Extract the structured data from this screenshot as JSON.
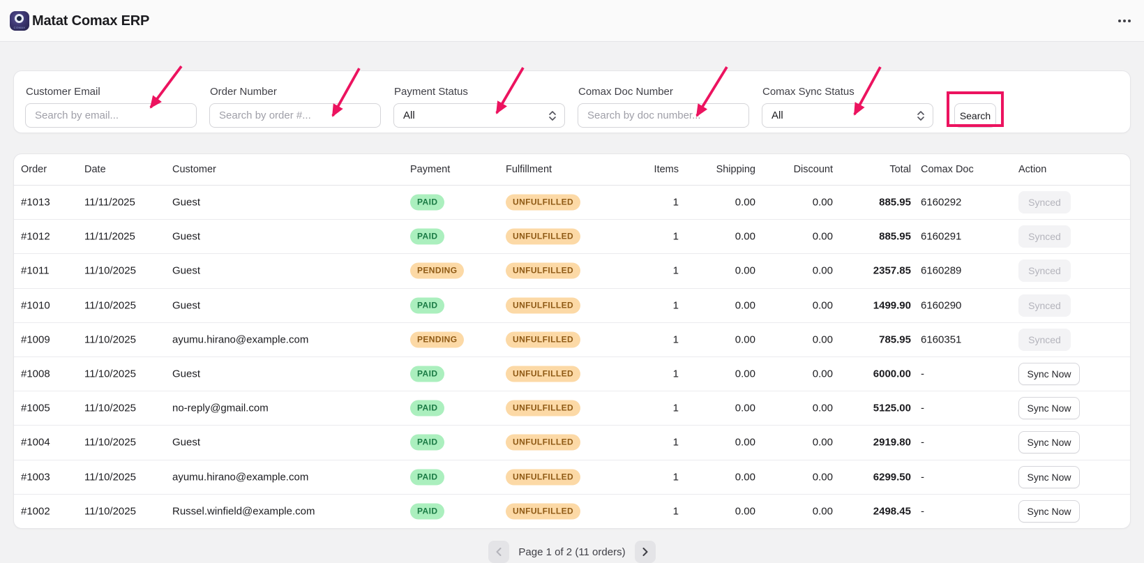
{
  "header": {
    "title": "Matat Comax ERP",
    "logo_text": "COMAX"
  },
  "filters": {
    "fields": [
      {
        "label": "Customer Email",
        "placeholder": "Search by email..."
      },
      {
        "label": "Order Number",
        "placeholder": "Search by order #..."
      },
      {
        "label": "Payment Status",
        "value": "All"
      },
      {
        "label": "Comax Doc Number",
        "placeholder": "Search by doc number..."
      },
      {
        "label": "Comax Sync Status",
        "value": "All"
      }
    ],
    "search_label": "Search"
  },
  "table": {
    "columns": [
      "Order",
      "Date",
      "Customer",
      "Payment",
      "Fulfillment",
      "Items",
      "Shipping",
      "Discount",
      "Total",
      "Comax Doc",
      "Action"
    ],
    "rows": [
      {
        "order": "#1013",
        "date": "11/11/2025",
        "customer": "Guest",
        "payment": "PAID",
        "fulfillment": "UNFULFILLED",
        "items": "1",
        "shipping": "0.00",
        "discount": "0.00",
        "total": "885.95",
        "comaxdoc": "6160292",
        "action": "Synced"
      },
      {
        "order": "#1012",
        "date": "11/11/2025",
        "customer": "Guest",
        "payment": "PAID",
        "fulfillment": "UNFULFILLED",
        "items": "1",
        "shipping": "0.00",
        "discount": "0.00",
        "total": "885.95",
        "comaxdoc": "6160291",
        "action": "Synced"
      },
      {
        "order": "#1011",
        "date": "11/10/2025",
        "customer": "Guest",
        "payment": "PENDING",
        "fulfillment": "UNFULFILLED",
        "items": "1",
        "shipping": "0.00",
        "discount": "0.00",
        "total": "2357.85",
        "comaxdoc": "6160289",
        "action": "Synced"
      },
      {
        "order": "#1010",
        "date": "11/10/2025",
        "customer": "Guest",
        "payment": "PAID",
        "fulfillment": "UNFULFILLED",
        "items": "1",
        "shipping": "0.00",
        "discount": "0.00",
        "total": "1499.90",
        "comaxdoc": "6160290",
        "action": "Synced"
      },
      {
        "order": "#1009",
        "date": "11/10/2025",
        "customer": "ayumu.hirano@example.com",
        "payment": "PENDING",
        "fulfillment": "UNFULFILLED",
        "items": "1",
        "shipping": "0.00",
        "discount": "0.00",
        "total": "785.95",
        "comaxdoc": "6160351",
        "action": "Synced"
      },
      {
        "order": "#1008",
        "date": "11/10/2025",
        "customer": "Guest",
        "payment": "PAID",
        "fulfillment": "UNFULFILLED",
        "items": "1",
        "shipping": "0.00",
        "discount": "0.00",
        "total": "6000.00",
        "comaxdoc": "-",
        "action": "Sync Now"
      },
      {
        "order": "#1005",
        "date": "11/10/2025",
        "customer": "no-reply@gmail.com",
        "payment": "PAID",
        "fulfillment": "UNFULFILLED",
        "items": "1",
        "shipping": "0.00",
        "discount": "0.00",
        "total": "5125.00",
        "comaxdoc": "-",
        "action": "Sync Now"
      },
      {
        "order": "#1004",
        "date": "11/10/2025",
        "customer": "Guest",
        "payment": "PAID",
        "fulfillment": "UNFULFILLED",
        "items": "1",
        "shipping": "0.00",
        "discount": "0.00",
        "total": "2919.80",
        "comaxdoc": "-",
        "action": "Sync Now"
      },
      {
        "order": "#1003",
        "date": "11/10/2025",
        "customer": "ayumu.hirano@example.com",
        "payment": "PAID",
        "fulfillment": "UNFULFILLED",
        "items": "1",
        "shipping": "0.00",
        "discount": "0.00",
        "total": "6299.50",
        "comaxdoc": "-",
        "action": "Sync Now"
      },
      {
        "order": "#1002",
        "date": "11/10/2025",
        "customer": "Russel.winfield@example.com",
        "payment": "PAID",
        "fulfillment": "UNFULFILLED",
        "items": "1",
        "shipping": "0.00",
        "discount": "0.00",
        "total": "2498.45",
        "comaxdoc": "-",
        "action": "Sync Now"
      }
    ]
  },
  "pagination": {
    "label": "Page 1 of 2 (11 orders)"
  },
  "annotation_color": "#ec135f"
}
